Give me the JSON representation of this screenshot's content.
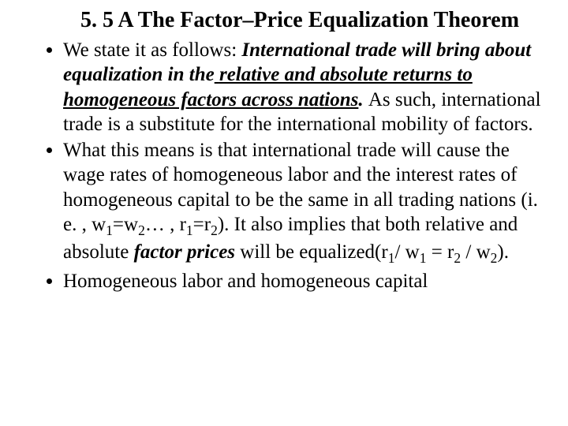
{
  "title": "5. 5 A The Factor–Price Equalization Theorem",
  "bullets": {
    "b1": {
      "lead": "We state it as follows: ",
      "part1": "International trade will bring about equalization in the",
      "space": " ",
      "part2": "relative and absolute returns to homogeneous factors across nations",
      "period": ". ",
      "tail": "As such, international trade is a substitute for the international mobility of factors."
    },
    "b2": {
      "lead": "What this means is that international trade will cause the wage rates of homogeneous labor and the interest rates of homogeneous capital to be the same in all trading nations (i. e. , w",
      "s1": "1",
      "eq1": "=w",
      "s2": "2",
      "mid1": "… , r",
      "s3": "1",
      "eq2": "=r",
      "s4": "2",
      "mid2": "). It also implies that both relative and absolute ",
      "fp": "factor prices",
      "mid3": " will be equalized(r",
      "s5": "1",
      "slash1": "/ w",
      "s6": "1",
      "eq3": " = r",
      "s7": "2",
      "slash2": " / w",
      "s8": "2",
      "end": ")."
    },
    "b3": "Homogeneous labor and homogeneous capital"
  },
  "colors": {
    "text": "#000000",
    "background": "#ffffff"
  },
  "fonts": {
    "family": "Times New Roman",
    "title_size_pt": 28,
    "body_size_pt": 25
  }
}
